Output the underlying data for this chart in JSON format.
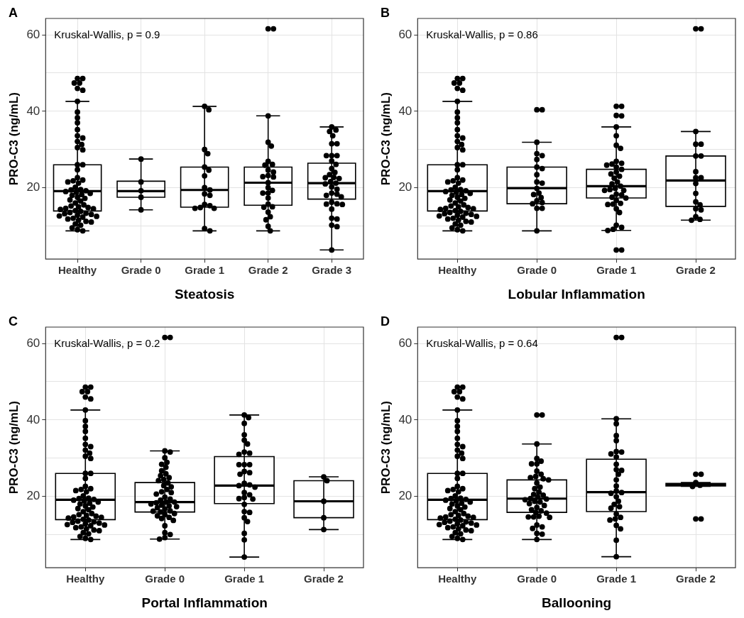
{
  "chart_data": [
    {
      "type": "box",
      "title": "A",
      "xlabel": "Steatosis",
      "ylabel": "PRO-C3 (ng/mL)",
      "annotations": [
        "Kruskal-Wallis, p = 0.9"
      ],
      "categories": [
        "Healthy",
        "Grade 0",
        "Grade 1",
        "Grade 2",
        "Grade 3"
      ],
      "color": "#000000",
      "ylim": [
        1.3,
        64.3
      ],
      "yticks": [
        {
          "value": 10,
          "label": null
        },
        20,
        {
          "value": 30,
          "label": null
        },
        40,
        {
          "value": 50,
          "label": null
        },
        60
      ],
      "grid": true,
      "marker": "circle",
      "boxes": [
        {
          "low": 8.7,
          "q1": 13.9,
          "median": 19.1,
          "q3": 26.0,
          "high": 42.6
        },
        {
          "low": 14.2,
          "q1": 17.5,
          "median": 19.1,
          "q3": 21.7,
          "high": 27.5
        },
        {
          "low": 8.7,
          "q1": 14.9,
          "median": 19.4,
          "q3": 25.4,
          "high": 41.3
        },
        {
          "low": 8.7,
          "q1": 15.4,
          "median": 21.3,
          "q3": 25.4,
          "high": 38.8
        },
        {
          "low": 3.7,
          "q1": 17.0,
          "median": 21.2,
          "q3": 26.4,
          "high": 35.9
        }
      ],
      "series": [
        {
          "type": "scatter",
          "color": "#000000",
          "x": [
            "Healthy",
            "Healthy",
            "Healthy",
            "Healthy",
            "Healthy",
            "Healthy",
            "Healthy",
            "Healthy",
            "Healthy",
            "Healthy",
            "Healthy",
            "Healthy",
            "Healthy",
            "Healthy",
            "Healthy",
            "Healthy",
            "Healthy",
            "Healthy",
            "Healthy",
            "Healthy",
            "Healthy",
            "Healthy",
            "Healthy",
            "Healthy",
            "Healthy",
            "Healthy",
            "Healthy",
            "Healthy",
            "Healthy",
            "Healthy",
            "Healthy",
            "Healthy",
            "Healthy",
            "Healthy",
            "Healthy",
            "Healthy",
            "Healthy",
            "Healthy",
            "Healthy",
            "Healthy",
            "Healthy",
            "Healthy",
            "Healthy",
            "Healthy",
            "Healthy",
            "Healthy",
            "Healthy",
            "Healthy",
            "Healthy",
            "Healthy",
            "Healthy",
            "Healthy",
            "Healthy",
            "Healthy",
            "Healthy",
            "Healthy",
            "Healthy",
            "Healthy",
            "Healthy",
            "Healthy",
            "Healthy",
            "Healthy",
            "Healthy",
            "Healthy",
            "Healthy",
            "Healthy",
            "Grade 0",
            "Grade 0",
            "Grade 0",
            "Grade 0",
            "Grade 0",
            "Grade 1",
            "Grade 1",
            "Grade 1",
            "Grade 1",
            "Grade 1",
            "Grade 1",
            "Grade 1",
            "Grade 1",
            "Grade 1",
            "Grade 1",
            "Grade 1",
            "Grade 1",
            "Grade 1",
            "Grade 1",
            "Grade 1",
            "Grade 1",
            "Grade 1",
            "Grade 1",
            "Grade 2",
            "Grade 2",
            "Grade 2",
            "Grade 2",
            "Grade 2",
            "Grade 2",
            "Grade 2",
            "Grade 2",
            "Grade 2",
            "Grade 2",
            "Grade 2",
            "Grade 2",
            "Grade 2",
            "Grade 2",
            "Grade 2",
            "Grade 2",
            "Grade 2",
            "Grade 2",
            "Grade 2",
            "Grade 2",
            "Grade 2",
            "Grade 2",
            "Grade 2",
            "Grade 2",
            "Grade 2",
            "Grade 2",
            "Grade 2",
            "Grade 3",
            "Grade 3",
            "Grade 3",
            "Grade 3",
            "Grade 3",
            "Grade 3",
            "Grade 3",
            "Grade 3",
            "Grade 3",
            "Grade 3",
            "Grade 3",
            "Grade 3",
            "Grade 3",
            "Grade 3",
            "Grade 3",
            "Grade 3",
            "Grade 3",
            "Grade 3",
            "Grade 3",
            "Grade 3",
            "Grade 3",
            "Grade 3",
            "Grade 3",
            "Grade 3",
            "Grade 3",
            "Grade 3",
            "Grade 3",
            "Grade 3",
            "Grade 3",
            "Grade 3",
            "Grade 3",
            "Grade 3",
            "Grade 3",
            "Grade 3",
            "Grade 3",
            "Grade 3"
          ],
          "values": [
            48.6,
            48.6,
            47.4,
            47.4,
            46,
            45.5,
            42.6,
            39.8,
            38.3,
            37,
            35.2,
            33.6,
            33,
            32.1,
            31.3,
            30.5,
            29.9,
            26,
            26,
            24.7,
            22.6,
            22,
            21.8,
            21.5,
            21.2,
            20.1,
            19.5,
            19.4,
            19.2,
            19,
            18.8,
            18.5,
            18.2,
            18,
            17.5,
            17.2,
            16.8,
            16.5,
            16,
            15.5,
            15.2,
            15,
            14.8,
            14.6,
            14.5,
            14.3,
            14,
            13.8,
            13.5,
            13.3,
            13.2,
            13,
            12.8,
            12.6,
            12.5,
            12.3,
            12,
            11.8,
            11.5,
            11.2,
            11,
            10.5,
            10.2,
            9.5,
            9,
            8.7,
            27.5,
            21.5,
            19.2,
            17.5,
            14.2,
            41.3,
            40.4,
            30,
            28.9,
            25.4,
            24.6,
            23.1,
            20,
            19.4,
            18.4,
            18,
            15.6,
            15.3,
            14.8,
            14.6,
            14.6,
            9.3,
            8.7,
            61.6,
            61.6,
            38.8,
            31.9,
            30.9,
            26.9,
            26.1,
            25.9,
            24.6,
            24.1,
            23.2,
            22.9,
            22.8,
            21.3,
            20,
            19.3,
            18.6,
            18.6,
            17.3,
            15.7,
            15,
            14.9,
            13.6,
            12.4,
            11.6,
            9.9,
            8.7,
            35.9,
            35.1,
            34.7,
            33.6,
            31.5,
            31.5,
            28.4,
            28.4,
            28.4,
            27,
            26.1,
            25,
            24,
            23.4,
            22.7,
            22.6,
            22.4,
            21.6,
            21.2,
            21,
            20.2,
            19.6,
            18.6,
            18.3,
            18,
            17.6,
            16.2,
            15.7,
            15.8,
            15.6,
            14.4,
            12,
            11.8,
            10.2,
            9.8,
            3.7
          ]
        }
      ]
    },
    {
      "type": "box",
      "title": "B",
      "xlabel": "Lobular Inflammation",
      "ylabel": "PRO-C3 (ng/mL)",
      "annotations": [
        "Kruskal-Wallis, p = 0.86"
      ],
      "categories": [
        "Healthy",
        "Grade 0",
        "Grade 1",
        "Grade 2"
      ],
      "color": "#000000",
      "ylim": [
        1.3,
        64.3
      ],
      "yticks": [
        {
          "value": 10,
          "label": null
        },
        20,
        {
          "value": 30,
          "label": null
        },
        40,
        {
          "value": 50,
          "label": null
        },
        60
      ],
      "grid": true,
      "marker": "circle",
      "boxes": [
        {
          "low": 8.7,
          "q1": 13.9,
          "median": 19.1,
          "q3": 26.0,
          "high": 42.6
        },
        {
          "low": 8.7,
          "q1": 15.8,
          "median": 19.9,
          "q3": 25.4,
          "high": 31.9
        },
        {
          "low": 8.8,
          "q1": 17.3,
          "median": 20.4,
          "q3": 24.8,
          "high": 35.9
        },
        {
          "low": 11.5,
          "q1": 15.1,
          "median": 21.9,
          "q3": 28.3,
          "high": 34.7
        }
      ],
      "series": [
        {
          "type": "scatter",
          "color": "#000000",
          "x": [
            "Healthy",
            "Healthy",
            "Healthy",
            "Healthy",
            "Healthy",
            "Healthy",
            "Healthy",
            "Healthy",
            "Healthy",
            "Healthy",
            "Healthy",
            "Healthy",
            "Healthy",
            "Healthy",
            "Healthy",
            "Healthy",
            "Healthy",
            "Healthy",
            "Healthy",
            "Healthy",
            "Healthy",
            "Healthy",
            "Healthy",
            "Healthy",
            "Healthy",
            "Healthy",
            "Healthy",
            "Healthy",
            "Healthy",
            "Healthy",
            "Healthy",
            "Healthy",
            "Healthy",
            "Healthy",
            "Healthy",
            "Healthy",
            "Healthy",
            "Healthy",
            "Healthy",
            "Healthy",
            "Healthy",
            "Healthy",
            "Healthy",
            "Healthy",
            "Healthy",
            "Healthy",
            "Healthy",
            "Healthy",
            "Healthy",
            "Healthy",
            "Healthy",
            "Healthy",
            "Healthy",
            "Healthy",
            "Healthy",
            "Healthy",
            "Healthy",
            "Healthy",
            "Healthy",
            "Healthy",
            "Healthy",
            "Healthy",
            "Healthy",
            "Healthy",
            "Healthy",
            "Healthy",
            "Grade 0",
            "Grade 0",
            "Grade 0",
            "Grade 0",
            "Grade 0",
            "Grade 0",
            "Grade 0",
            "Grade 0",
            "Grade 0",
            "Grade 0",
            "Grade 0",
            "Grade 0",
            "Grade 0",
            "Grade 0",
            "Grade 0",
            "Grade 0",
            "Grade 0",
            "Grade 0",
            "Grade 0",
            "Grade 0",
            "Grade 0",
            "Grade 1",
            "Grade 1",
            "Grade 1",
            "Grade 1",
            "Grade 1",
            "Grade 1",
            "Grade 1",
            "Grade 1",
            "Grade 1",
            "Grade 1",
            "Grade 1",
            "Grade 1",
            "Grade 1",
            "Grade 1",
            "Grade 1",
            "Grade 1",
            "Grade 1",
            "Grade 1",
            "Grade 1",
            "Grade 1",
            "Grade 1",
            "Grade 1",
            "Grade 1",
            "Grade 1",
            "Grade 1",
            "Grade 1",
            "Grade 1",
            "Grade 1",
            "Grade 1",
            "Grade 1",
            "Grade 1",
            "Grade 1",
            "Grade 1",
            "Grade 1",
            "Grade 1",
            "Grade 1",
            "Grade 1",
            "Grade 1",
            "Grade 1",
            "Grade 1",
            "Grade 1",
            "Grade 2",
            "Grade 2",
            "Grade 2",
            "Grade 2",
            "Grade 2",
            "Grade 2",
            "Grade 2",
            "Grade 2",
            "Grade 2",
            "Grade 2",
            "Grade 2",
            "Grade 2",
            "Grade 2",
            "Grade 2",
            "Grade 2",
            "Grade 2",
            "Grade 2",
            "Grade 2",
            "Grade 2"
          ],
          "values": [
            48.6,
            48.6,
            47.4,
            47.4,
            46,
            45.5,
            42.6,
            39.8,
            38.3,
            37,
            35.2,
            33.6,
            33,
            32.1,
            31.3,
            30.5,
            29.9,
            26,
            26,
            24.7,
            22.6,
            22,
            21.8,
            21.5,
            21.2,
            20.1,
            19.5,
            19.4,
            19.2,
            19,
            18.8,
            18.5,
            18.2,
            18,
            17.5,
            17.2,
            16.8,
            16.5,
            16,
            15.5,
            15.2,
            15,
            14.8,
            14.6,
            14.5,
            14.3,
            14,
            13.8,
            13.5,
            13.3,
            13.2,
            13,
            12.8,
            12.6,
            12.5,
            12.3,
            12,
            11.8,
            11.5,
            11.2,
            11,
            10.5,
            10.2,
            9.5,
            9,
            8.7,
            40.4,
            40.4,
            31.9,
            28.9,
            28.4,
            27.4,
            25.4,
            25,
            23.4,
            21.5,
            21.2,
            19.8,
            18.6,
            18.2,
            17.4,
            16.6,
            16.1,
            15.8,
            14.6,
            14.6,
            8.7,
            41.3,
            41.3,
            38.9,
            38.8,
            35.9,
            33.6,
            31.1,
            30.3,
            26.9,
            26.4,
            26.2,
            25.9,
            25.4,
            24.8,
            24.1,
            23.6,
            23,
            22.5,
            21.5,
            21,
            20.4,
            19.8,
            19.5,
            19.3,
            19.3,
            18.3,
            18.1,
            17.5,
            17.3,
            16.7,
            15.9,
            15.7,
            15.6,
            14.5,
            13.5,
            10.2,
            9.6,
            9.1,
            8.8,
            3.7,
            3.7,
            61.6,
            61.6,
            34.7,
            31.4,
            31.4,
            28.3,
            28.3,
            24.2,
            22.6,
            22.6,
            21.1,
            18.5,
            16.3,
            15.5,
            14.5,
            14.2,
            12.4,
            11.7,
            11.5
          ]
        }
      ]
    },
    {
      "type": "box",
      "title": "C",
      "xlabel": "Portal Inflammation",
      "ylabel": "PRO-C3 (ng/mL)",
      "annotations": [
        "Kruskal-Wallis, p = 0.2"
      ],
      "categories": [
        "Healthy",
        "Grade 0",
        "Grade 1",
        "Grade 2"
      ],
      "color": "#000000",
      "ylim": [
        1.3,
        64.3
      ],
      "yticks": [
        {
          "value": 10,
          "label": null
        },
        20,
        {
          "value": 30,
          "label": null
        },
        40,
        {
          "value": 50,
          "label": null
        },
        60
      ],
      "grid": true,
      "marker": "circle",
      "boxes": [
        {
          "low": 8.7,
          "q1": 13.9,
          "median": 19.1,
          "q3": 26.0,
          "high": 42.6
        },
        {
          "low": 8.8,
          "q1": 15.9,
          "median": 18.5,
          "q3": 23.6,
          "high": 31.9
        },
        {
          "low": 4.1,
          "q1": 18.1,
          "median": 22.8,
          "q3": 30.4,
          "high": 41.3
        },
        {
          "low": 11.3,
          "q1": 14.4,
          "median": 18.7,
          "q3": 24.1,
          "high": 25.1
        }
      ],
      "series": [
        {
          "type": "scatter",
          "color": "#000000",
          "x": [
            "Healthy",
            "Healthy",
            "Healthy",
            "Healthy",
            "Healthy",
            "Healthy",
            "Healthy",
            "Healthy",
            "Healthy",
            "Healthy",
            "Healthy",
            "Healthy",
            "Healthy",
            "Healthy",
            "Healthy",
            "Healthy",
            "Healthy",
            "Healthy",
            "Healthy",
            "Healthy",
            "Healthy",
            "Healthy",
            "Healthy",
            "Healthy",
            "Healthy",
            "Healthy",
            "Healthy",
            "Healthy",
            "Healthy",
            "Healthy",
            "Healthy",
            "Healthy",
            "Healthy",
            "Healthy",
            "Healthy",
            "Healthy",
            "Healthy",
            "Healthy",
            "Healthy",
            "Healthy",
            "Healthy",
            "Healthy",
            "Healthy",
            "Healthy",
            "Healthy",
            "Healthy",
            "Healthy",
            "Healthy",
            "Healthy",
            "Healthy",
            "Healthy",
            "Healthy",
            "Healthy",
            "Healthy",
            "Healthy",
            "Healthy",
            "Healthy",
            "Healthy",
            "Healthy",
            "Healthy",
            "Healthy",
            "Healthy",
            "Healthy",
            "Healthy",
            "Healthy",
            "Healthy",
            "Grade 0",
            "Grade 0",
            "Grade 0",
            "Grade 0",
            "Grade 0",
            "Grade 0",
            "Grade 0",
            "Grade 0",
            "Grade 0",
            "Grade 0",
            "Grade 0",
            "Grade 0",
            "Grade 0",
            "Grade 0",
            "Grade 0",
            "Grade 0",
            "Grade 0",
            "Grade 0",
            "Grade 0",
            "Grade 0",
            "Grade 0",
            "Grade 0",
            "Grade 0",
            "Grade 0",
            "Grade 0",
            "Grade 0",
            "Grade 0",
            "Grade 0",
            "Grade 0",
            "Grade 0",
            "Grade 0",
            "Grade 0",
            "Grade 0",
            "Grade 0",
            "Grade 0",
            "Grade 0",
            "Grade 0",
            "Grade 0",
            "Grade 0",
            "Grade 0",
            "Grade 0",
            "Grade 0",
            "Grade 0",
            "Grade 0",
            "Grade 0",
            "Grade 0",
            "Grade 0",
            "Grade 1",
            "Grade 1",
            "Grade 1",
            "Grade 1",
            "Grade 1",
            "Grade 1",
            "Grade 1",
            "Grade 1",
            "Grade 1",
            "Grade 1",
            "Grade 1",
            "Grade 1",
            "Grade 1",
            "Grade 1",
            "Grade 1",
            "Grade 1",
            "Grade 1",
            "Grade 1",
            "Grade 1",
            "Grade 1",
            "Grade 1",
            "Grade 1",
            "Grade 1",
            "Grade 1",
            "Grade 1",
            "Grade 1",
            "Grade 1",
            "Grade 1",
            "Grade 1",
            "Grade 1",
            "Grade 1",
            "Grade 1",
            "Grade 2",
            "Grade 2",
            "Grade 2",
            "Grade 2",
            "Grade 2"
          ],
          "values": [
            48.6,
            48.6,
            47.4,
            47.4,
            46,
            45.5,
            42.6,
            39.8,
            38.3,
            37,
            35.2,
            33.6,
            33,
            32.1,
            31.3,
            30.5,
            29.9,
            26,
            26,
            24.7,
            22.6,
            22,
            21.8,
            21.5,
            21.2,
            20.1,
            19.5,
            19.4,
            19.2,
            19,
            18.8,
            18.5,
            18.2,
            18,
            17.5,
            17.2,
            16.8,
            16.5,
            16,
            15.5,
            15.2,
            15,
            14.8,
            14.6,
            14.5,
            14.3,
            14,
            13.8,
            13.5,
            13.3,
            13.2,
            13,
            12.8,
            12.6,
            12.5,
            12.3,
            12,
            11.8,
            11.5,
            11.2,
            11,
            10.5,
            10.2,
            9.5,
            9,
            8.7,
            61.6,
            61.6,
            31.9,
            31.6,
            30.1,
            28.9,
            28.4,
            27.6,
            26.7,
            25.9,
            25.4,
            24.9,
            24.4,
            24.1,
            23.5,
            22.8,
            22.5,
            21.8,
            21.2,
            21,
            20.6,
            19.8,
            19.3,
            19,
            18.5,
            18.5,
            18.3,
            18,
            17.7,
            17.5,
            17.3,
            17,
            16.7,
            16.2,
            16.1,
            15.9,
            15.5,
            15.2,
            14.9,
            14.5,
            14.2,
            13.7,
            12.3,
            10.5,
            10,
            9.2,
            8.8,
            41.3,
            40.6,
            39.1,
            36.1,
            34.7,
            33.7,
            31.6,
            31.3,
            31,
            28.3,
            28.3,
            28.3,
            26.5,
            26.2,
            25.8,
            23.4,
            23,
            22.8,
            22.4,
            21,
            20.4,
            19.7,
            19.4,
            19.3,
            17.9,
            16,
            15.8,
            14.4,
            13.4,
            10.3,
            8.6,
            4.1,
            25.1,
            24.1,
            18.7,
            14.4,
            11.3
          ]
        }
      ]
    },
    {
      "type": "box",
      "title": "D",
      "xlabel": "Ballooning",
      "ylabel": "PRO-C3 (ng/mL)",
      "annotations": [
        "Kruskal-Wallis, p = 0.64"
      ],
      "categories": [
        "Healthy",
        "Grade 0",
        "Grade 1",
        "Grade 2"
      ],
      "color": "#000000",
      "ylim": [
        1.3,
        64.3
      ],
      "yticks": [
        {
          "value": 10,
          "label": null
        },
        20,
        {
          "value": 30,
          "label": null
        },
        40,
        {
          "value": 50,
          "label": null
        },
        60
      ],
      "grid": true,
      "marker": "circle",
      "boxes": [
        {
          "low": 8.7,
          "q1": 13.9,
          "median": 19.1,
          "q3": 26.0,
          "high": 42.6
        },
        {
          "low": 8.7,
          "q1": 15.8,
          "median": 19.4,
          "q3": 24.3,
          "high": 33.7
        },
        {
          "low": 4.2,
          "q1": 16.0,
          "median": 21.1,
          "q3": 29.7,
          "high": 40.3
        },
        {
          "low": 22.6,
          "q1": 22.7,
          "median": 23.0,
          "q3": 23.4,
          "high": 23.6
        }
      ],
      "series": [
        {
          "type": "scatter",
          "color": "#000000",
          "x": [
            "Healthy",
            "Healthy",
            "Healthy",
            "Healthy",
            "Healthy",
            "Healthy",
            "Healthy",
            "Healthy",
            "Healthy",
            "Healthy",
            "Healthy",
            "Healthy",
            "Healthy",
            "Healthy",
            "Healthy",
            "Healthy",
            "Healthy",
            "Healthy",
            "Healthy",
            "Healthy",
            "Healthy",
            "Healthy",
            "Healthy",
            "Healthy",
            "Healthy",
            "Healthy",
            "Healthy",
            "Healthy",
            "Healthy",
            "Healthy",
            "Healthy",
            "Healthy",
            "Healthy",
            "Healthy",
            "Healthy",
            "Healthy",
            "Healthy",
            "Healthy",
            "Healthy",
            "Healthy",
            "Healthy",
            "Healthy",
            "Healthy",
            "Healthy",
            "Healthy",
            "Healthy",
            "Healthy",
            "Healthy",
            "Healthy",
            "Healthy",
            "Healthy",
            "Healthy",
            "Healthy",
            "Healthy",
            "Healthy",
            "Healthy",
            "Healthy",
            "Healthy",
            "Healthy",
            "Healthy",
            "Healthy",
            "Healthy",
            "Healthy",
            "Healthy",
            "Healthy",
            "Healthy",
            "Grade 0",
            "Grade 0",
            "Grade 0",
            "Grade 0",
            "Grade 0",
            "Grade 0",
            "Grade 0",
            "Grade 0",
            "Grade 0",
            "Grade 0",
            "Grade 0",
            "Grade 0",
            "Grade 0",
            "Grade 0",
            "Grade 0",
            "Grade 0",
            "Grade 0",
            "Grade 0",
            "Grade 0",
            "Grade 0",
            "Grade 0",
            "Grade 0",
            "Grade 0",
            "Grade 0",
            "Grade 0",
            "Grade 0",
            "Grade 0",
            "Grade 0",
            "Grade 0",
            "Grade 0",
            "Grade 0",
            "Grade 0",
            "Grade 0",
            "Grade 0",
            "Grade 0",
            "Grade 0",
            "Grade 0",
            "Grade 0",
            "Grade 0",
            "Grade 0",
            "Grade 0",
            "Grade 0",
            "Grade 1",
            "Grade 1",
            "Grade 1",
            "Grade 1",
            "Grade 1",
            "Grade 1",
            "Grade 1",
            "Grade 1",
            "Grade 1",
            "Grade 1",
            "Grade 1",
            "Grade 1",
            "Grade 1",
            "Grade 1",
            "Grade 1",
            "Grade 1",
            "Grade 1",
            "Grade 1",
            "Grade 1",
            "Grade 1",
            "Grade 1",
            "Grade 1",
            "Grade 1",
            "Grade 1",
            "Grade 1",
            "Grade 1",
            "Grade 1",
            "Grade 1",
            "Grade 1",
            "Grade 1",
            "Grade 1",
            "Grade 1",
            "Grade 2",
            "Grade 2",
            "Grade 2",
            "Grade 2",
            "Grade 2",
            "Grade 2",
            "Grade 2"
          ],
          "values": [
            48.6,
            48.6,
            47.4,
            47.4,
            46,
            45.5,
            42.6,
            39.8,
            38.3,
            37,
            35.2,
            33.6,
            33,
            32.1,
            31.3,
            30.5,
            29.9,
            26,
            26,
            24.7,
            22.6,
            22,
            21.8,
            21.5,
            21.2,
            20.1,
            19.5,
            19.4,
            19.2,
            19,
            18.8,
            18.5,
            18.2,
            18,
            17.5,
            17.2,
            16.8,
            16.5,
            16,
            15.5,
            15.2,
            15,
            14.8,
            14.6,
            14.5,
            14.3,
            14,
            13.8,
            13.5,
            13.3,
            13.2,
            13,
            12.8,
            12.6,
            12.5,
            12.3,
            12,
            11.8,
            11.5,
            11.2,
            11,
            10.5,
            10.2,
            9.5,
            9,
            8.7,
            41.3,
            41.3,
            33.7,
            29.9,
            29.2,
            28.5,
            28.5,
            26.6,
            25.8,
            25.2,
            24.9,
            24.6,
            24.3,
            23.5,
            22.4,
            22,
            21.1,
            20.5,
            20.3,
            19.8,
            19.4,
            19.3,
            19.1,
            18.7,
            18.5,
            18.1,
            17.6,
            17.1,
            16.5,
            16.2,
            15.8,
            15.6,
            14.8,
            14.6,
            14.6,
            14.5,
            12.5,
            12,
            11.6,
            10.3,
            10.1,
            8.7,
            61.6,
            61.6,
            40.3,
            39,
            35.9,
            34.6,
            31.7,
            31.6,
            31.1,
            30.3,
            28.4,
            27,
            26.8,
            25.8,
            24.3,
            22.7,
            21.4,
            21,
            20.8,
            19.9,
            18.7,
            17.9,
            17.3,
            16.9,
            15.4,
            14.5,
            14.1,
            13.8,
            12.4,
            11.5,
            8.5,
            4.2,
            25.8,
            25.8,
            23.6,
            22.9,
            22.6,
            14.1,
            14.1
          ]
        }
      ]
    }
  ]
}
